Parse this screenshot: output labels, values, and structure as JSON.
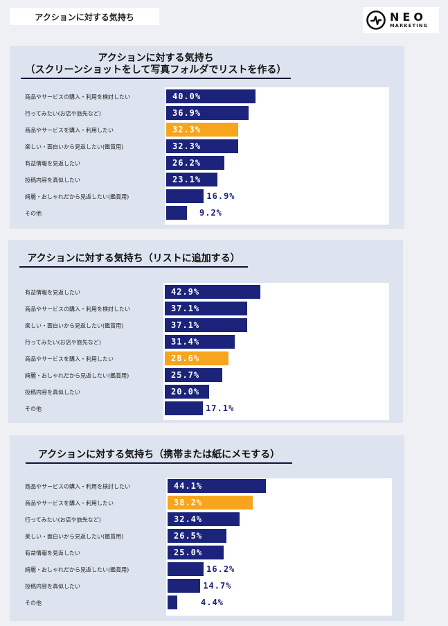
{
  "page_title": "アクションに対する気持ち",
  "logo": {
    "main": "NEO",
    "sub": "MARKETING"
  },
  "colors": {
    "bar": "#1b237a",
    "highlight": "#f7a51d",
    "panel": "#dde4ef"
  },
  "chart_data": [
    {
      "type": "bar",
      "orientation": "horizontal",
      "title": "アクションに対する気持ち\n（スクリーンショットをして写真フォルダでリストを作る）",
      "categories": [
        "商品やサービスの購入・利用を検討したい",
        "行ってみたい(お店や旅先など)",
        "商品やサービスを購入・利用したい",
        "楽しい・面白いから見返したい(鑑賞用)",
        "有益情報を見返したい",
        "投稿内容を真似したい",
        "綺麗・おしゃれだから見返したい(鑑賞用)",
        "その他"
      ],
      "values": [
        40.0,
        36.9,
        32.3,
        32.3,
        26.2,
        23.1,
        16.9,
        9.2
      ],
      "labels": [
        "40.0%",
        "36.9%",
        "32.3%",
        "32.3%",
        "26.2%",
        "23.1%",
        "16.9%",
        "9.2%"
      ],
      "unit": "%",
      "highlight_index": 2
    },
    {
      "type": "bar",
      "orientation": "horizontal",
      "title": "アクションに対する気持ち（リストに追加する）",
      "categories": [
        "有益情報を見返したい",
        "商品やサービスの購入・利用を検討したい",
        "楽しい・面白いから見返したい(鑑賞用)",
        "行ってみたい(お店や旅先など)",
        "商品やサービスを購入・利用したい",
        "綺麗・おしゃれだから見返したい(鑑賞用)",
        "投稿内容を真似したい",
        "その他"
      ],
      "values": [
        42.9,
        37.1,
        37.1,
        31.4,
        28.6,
        25.7,
        20.0,
        17.1
      ],
      "labels": [
        "42.9%",
        "37.1%",
        "37.1%",
        "31.4%",
        "28.6%",
        "25.7%",
        "20.0%",
        "17.1%"
      ],
      "unit": "%",
      "highlight_index": 4
    },
    {
      "type": "bar",
      "orientation": "horizontal",
      "title": "アクションに対する気持ち（携帯または紙にメモする）",
      "categories": [
        "商品やサービスの購入・利用を検討したい",
        "商品やサービスを購入・利用したい",
        "行ってみたい(お店や旅先など)",
        "楽しい・面白いから見返したい(鑑賞用)",
        "有益情報を見返したい",
        "綺麗・おしゃれだから見返したい(鑑賞用)",
        "投稿内容を真似したい",
        "その他"
      ],
      "values": [
        44.1,
        38.2,
        32.4,
        26.5,
        25.0,
        16.2,
        14.7,
        4.4
      ],
      "labels": [
        "44.1%",
        "38.2%",
        "32.4%",
        "26.5%",
        "25.0%",
        "16.2%",
        "14.7%",
        "4.4%"
      ],
      "unit": "%",
      "highlight_index": 1
    }
  ]
}
